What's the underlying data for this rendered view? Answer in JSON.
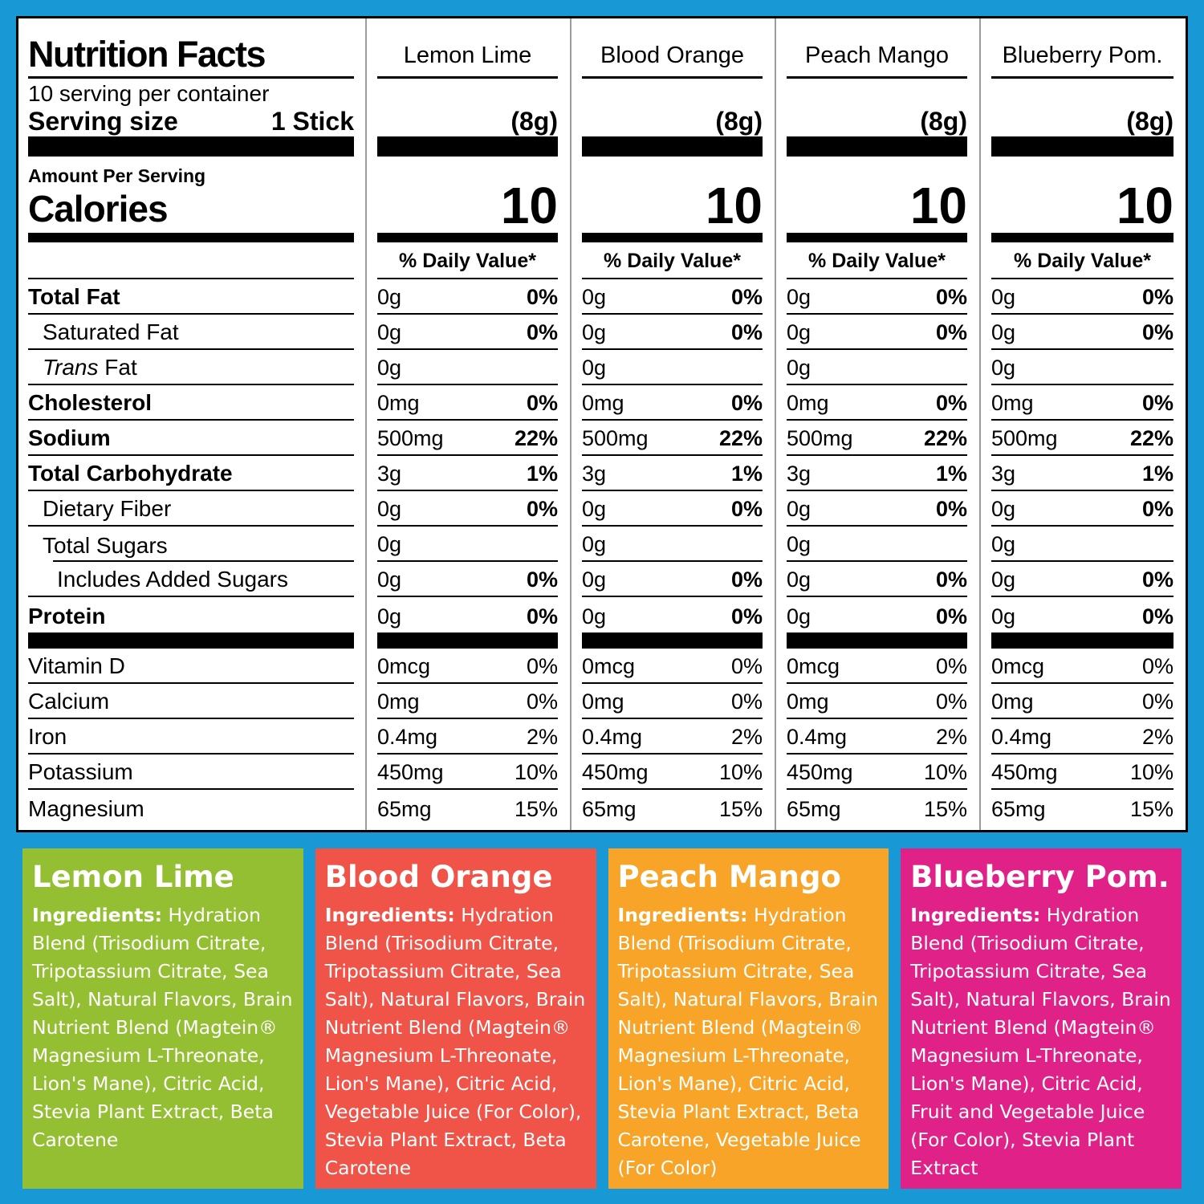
{
  "colors": {
    "frame_blue": "#1899D6",
    "table_bg": "#FFFFFF",
    "table_text": "#000000",
    "column_divider": "#9C9C9C",
    "panel_lemon_lime": "#94BF33",
    "panel_blood_orange": "#F05448",
    "panel_peach_mango": "#F7A428",
    "panel_blueberry_pom": "#E02187"
  },
  "table": {
    "title": "Nutrition Facts",
    "servings_line": "10 serving per container",
    "serving_size_label": "Serving size",
    "serving_size_value": "1 Stick",
    "amount_per_serving": "Amount Per Serving",
    "calories_label": "Calories",
    "daily_value_header": "% Daily Value*",
    "columns": [
      {
        "name": "Lemon Lime",
        "serving_weight": "(8g)",
        "calories": "10"
      },
      {
        "name": "Blood Orange",
        "serving_weight": "(8g)",
        "calories": "10"
      },
      {
        "name": "Peach Mango",
        "serving_weight": "(8g)",
        "calories": "10"
      },
      {
        "name": "Blueberry Pom.",
        "serving_weight": "(8g)",
        "calories": "10"
      }
    ],
    "rows": [
      {
        "label": "Total Fat",
        "bold": true,
        "indent": 0,
        "values": [
          "0g",
          "0g",
          "0g",
          "0g"
        ],
        "dv": [
          "0%",
          "0%",
          "0%",
          "0%"
        ],
        "dv_bold": true
      },
      {
        "label": "Saturated Fat",
        "bold": false,
        "indent": 1,
        "values": [
          "0g",
          "0g",
          "0g",
          "0g"
        ],
        "dv": [
          "0%",
          "0%",
          "0%",
          "0%"
        ],
        "dv_bold": true
      },
      {
        "label": "Trans Fat",
        "italic_prefix": "Trans",
        "label_rest": " Fat",
        "bold": false,
        "indent": 1,
        "values": [
          "0g",
          "0g",
          "0g",
          "0g"
        ],
        "dv": null
      },
      {
        "label": "Cholesterol",
        "bold": true,
        "indent": 0,
        "values": [
          "0mg",
          "0mg",
          "0mg",
          "0mg"
        ],
        "dv": [
          "0%",
          "0%",
          "0%",
          "0%"
        ],
        "dv_bold": true
      },
      {
        "label": "Sodium",
        "bold": true,
        "indent": 0,
        "values": [
          "500mg",
          "500mg",
          "500mg",
          "500mg"
        ],
        "dv": [
          "22%",
          "22%",
          "22%",
          "22%"
        ],
        "dv_bold": true
      },
      {
        "label": "Total Carbohydrate",
        "bold": true,
        "indent": 0,
        "values": [
          "3g",
          "3g",
          "3g",
          "3g"
        ],
        "dv": [
          "1%",
          "1%",
          "1%",
          "1%"
        ],
        "dv_bold": true
      },
      {
        "label": "Dietary Fiber",
        "bold": false,
        "indent": 1,
        "values": [
          "0g",
          "0g",
          "0g",
          "0g"
        ],
        "dv": [
          "0%",
          "0%",
          "0%",
          "0%"
        ],
        "dv_bold": true
      },
      {
        "label": "Total Sugars",
        "bold": false,
        "indent": 1,
        "values": [
          "0g",
          "0g",
          "0g",
          "0g"
        ],
        "dv": null,
        "sub_rule": true
      },
      {
        "label": "Includes Added Sugars",
        "bold": false,
        "indent": 2,
        "values": [
          "0g",
          "0g",
          "0g",
          "0g"
        ],
        "dv": [
          "0%",
          "0%",
          "0%",
          "0%"
        ],
        "dv_bold": true
      },
      {
        "label": "Protein",
        "bold": true,
        "indent": 0,
        "values": [
          "0g",
          "0g",
          "0g",
          "0g"
        ],
        "dv": [
          "0%",
          "0%",
          "0%",
          "0%"
        ],
        "dv_bold": true,
        "heavy_after": true
      }
    ],
    "micronutrients": [
      {
        "label": "Vitamin D",
        "values": [
          "0mcg",
          "0mcg",
          "0mcg",
          "0mcg"
        ],
        "dv": [
          "0%",
          "0%",
          "0%",
          "0%"
        ]
      },
      {
        "label": "Calcium",
        "values": [
          "0mg",
          "0mg",
          "0mg",
          "0mg"
        ],
        "dv": [
          "0%",
          "0%",
          "0%",
          "0%"
        ]
      },
      {
        "label": "Iron",
        "values": [
          "0.4mg",
          "0.4mg",
          "0.4mg",
          "0.4mg"
        ],
        "dv": [
          "2%",
          "2%",
          "2%",
          "2%"
        ]
      },
      {
        "label": "Potassium",
        "values": [
          "450mg",
          "450mg",
          "450mg",
          "450mg"
        ],
        "dv": [
          "10%",
          "10%",
          "10%",
          "10%"
        ]
      },
      {
        "label": "Magnesium",
        "values": [
          "65mg",
          "65mg",
          "65mg",
          "65mg"
        ],
        "dv": [
          "15%",
          "15%",
          "15%",
          "15%"
        ],
        "last": true
      }
    ]
  },
  "panels": [
    {
      "name": "Lemon Lime",
      "color_key": "panel_lemon_lime",
      "ingredients_label": "Ingredients:",
      "ingredients": "Hydration Blend (Trisodium Citrate, Tripotassium Citrate, Sea Salt), Natural Flavors, Brain Nutrient Blend (Magtein® Magnesium L-Threonate, Lion's Mane), Citric Acid, Stevia Plant Extract, Beta Carotene"
    },
    {
      "name": "Blood Orange",
      "color_key": "panel_blood_orange",
      "ingredients_label": "Ingredients:",
      "ingredients": "Hydration Blend (Trisodium Citrate, Tripotassium Citrate, Sea Salt), Natural Flavors, Brain Nutrient Blend (Magtein® Magnesium L-Threonate, Lion's Mane), Citric Acid, Vegetable Juice (For Color), Stevia Plant Extract, Beta Carotene"
    },
    {
      "name": "Peach Mango",
      "color_key": "panel_peach_mango",
      "ingredients_label": "Ingredients:",
      "ingredients": "Hydration Blend (Trisodium Citrate, Tripotassium Citrate, Sea Salt), Natural Flavors, Brain Nutrient Blend (Magtein® Magnesium L-Threonate, Lion's Mane), Citric Acid, Stevia Plant Extract, Beta Carotene, Vegetable Juice (For Color)"
    },
    {
      "name": "Blueberry Pom.",
      "color_key": "panel_blueberry_pom",
      "ingredients_label": "Ingredients:",
      "ingredients": "Hydration Blend (Trisodium Citrate, Tripotassium Citrate, Sea Salt), Natural Flavors, Brain Nutrient Blend (Magtein® Magnesium L-Threonate, Lion's Mane), Citric Acid, Fruit and Vegetable Juice (For Color), Stevia Plant Extract"
    }
  ]
}
